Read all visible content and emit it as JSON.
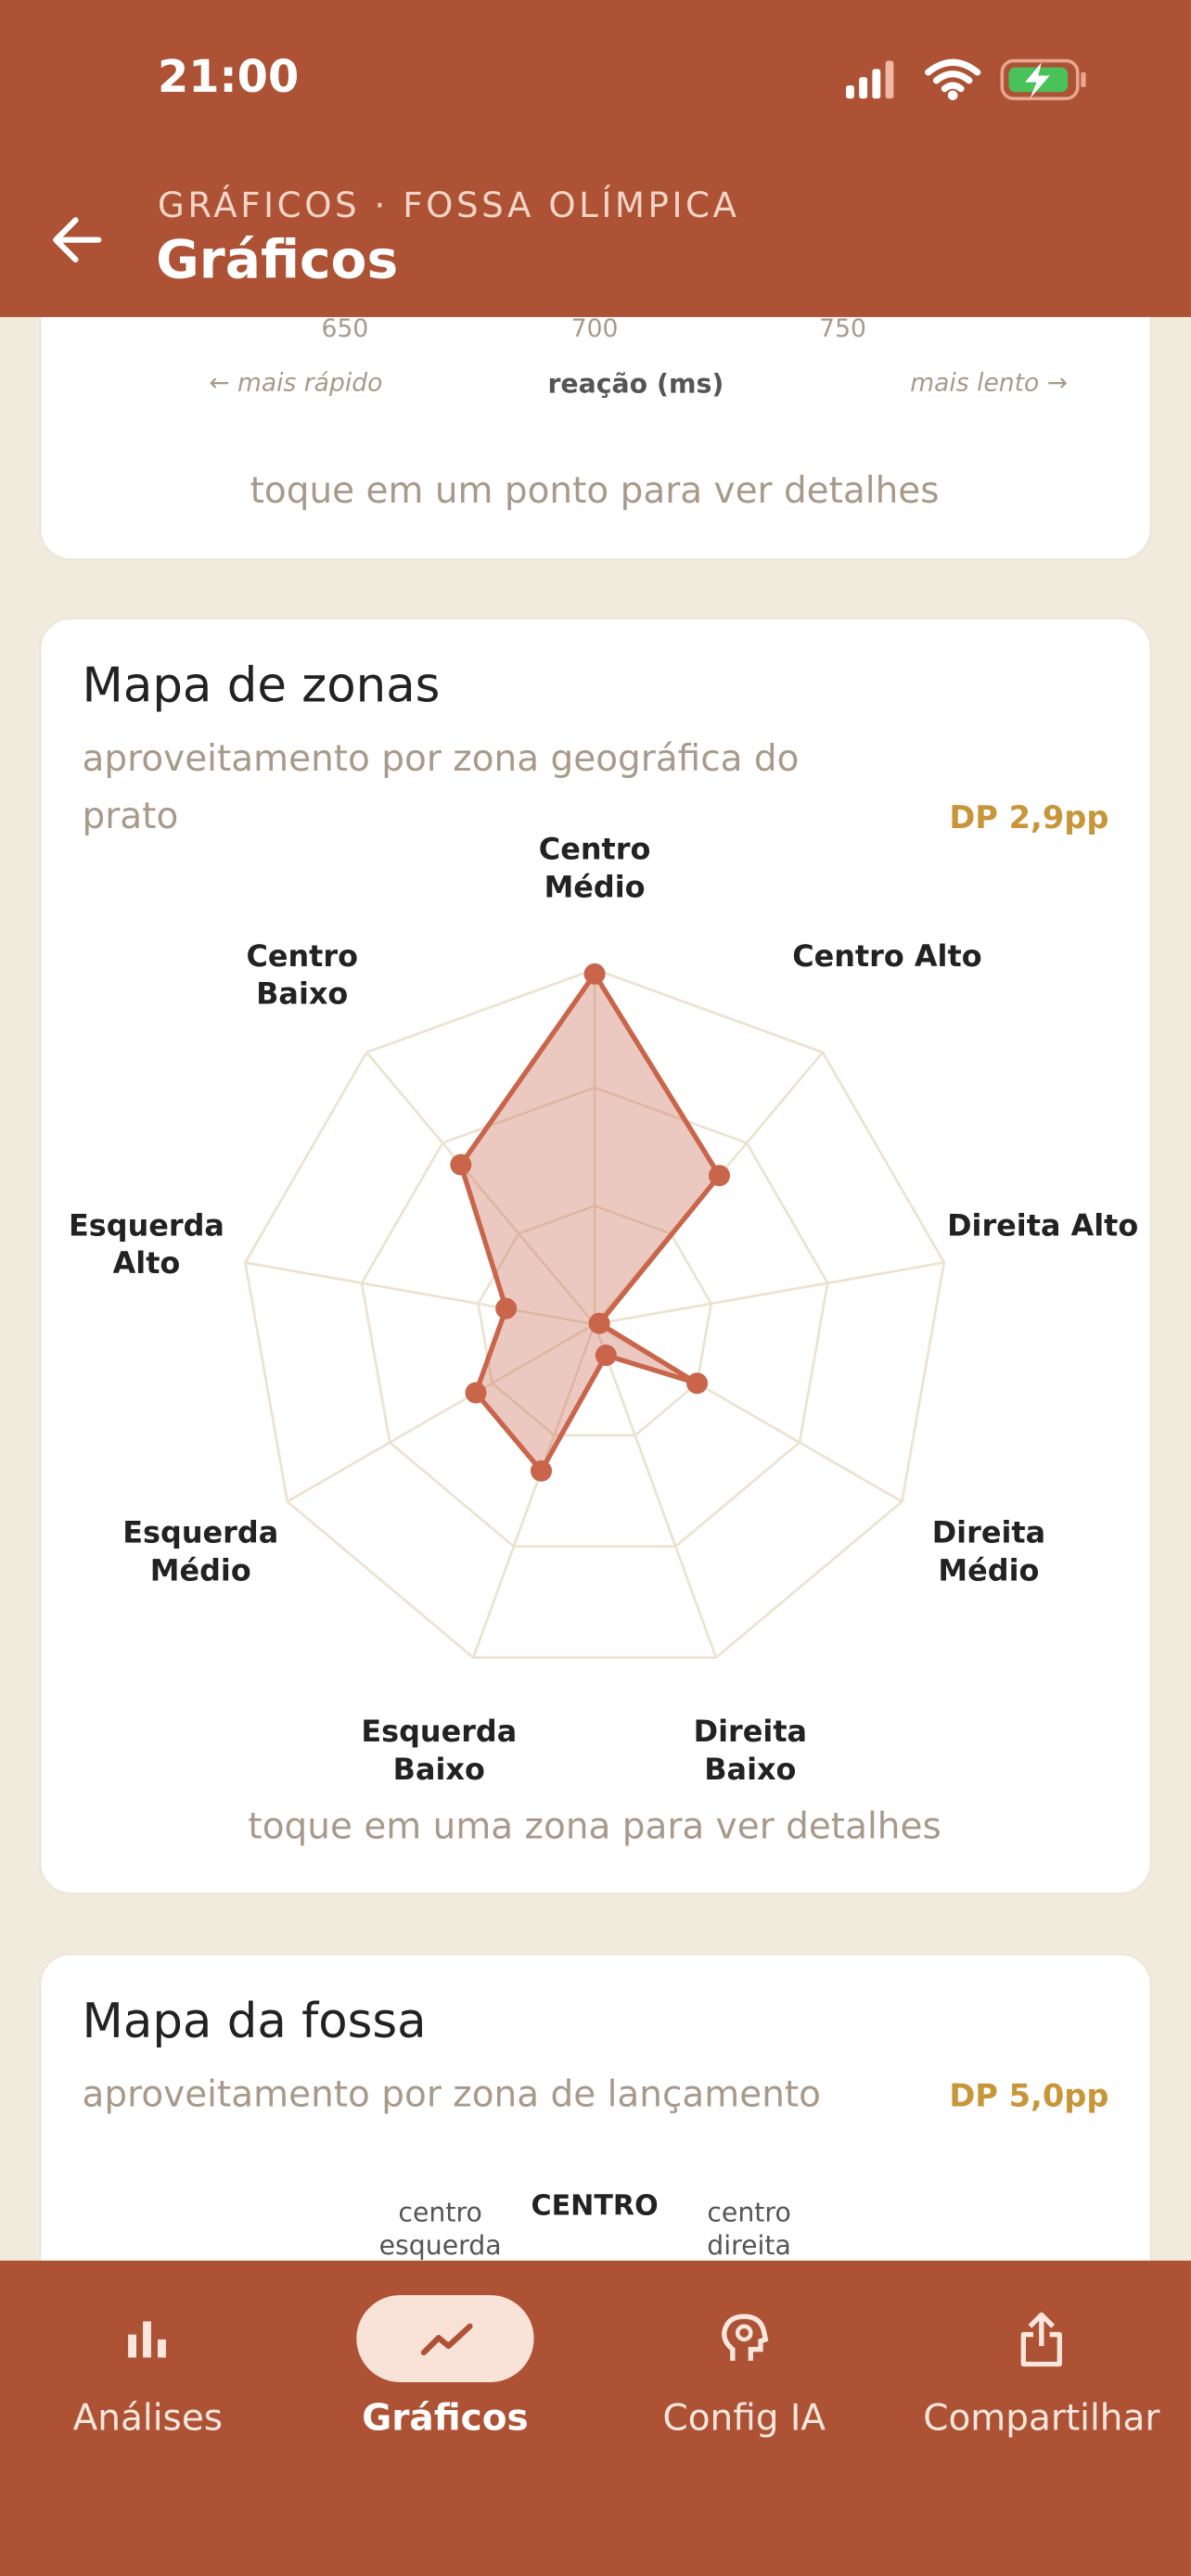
{
  "status_bar": {
    "time": "21:00"
  },
  "header": {
    "subtitle": "GRÁFICOS · FOSSA OLÍMPICA",
    "title": "Gráficos"
  },
  "reaction_card": {
    "ticks": [
      "650",
      "700",
      "750"
    ],
    "left_hint": "← mais rápido",
    "axis_label": "reação (ms)",
    "right_hint": "mais lento →",
    "hint": "toque em um ponto para ver detalhes"
  },
  "zone_card": {
    "title": "Mapa de zonas",
    "subtitle": "aproveitamento por zona geográfica do prato",
    "badge": "DP 2,9pp",
    "hint": "toque em uma zona para ver detalhes",
    "chart": {
      "type": "radar",
      "categories": [
        "Centro Médio",
        "Centro Alto",
        "Direita Alto",
        "Direita Médio",
        "Direita Baixo",
        "Esquerda Baixo",
        "Esquerda Médio",
        "Esquerda Alto",
        "Centro Baixo"
      ],
      "values": [
        74,
        41,
        1,
        25,
        7,
        33,
        29,
        19,
        44
      ],
      "color": "#c8654a",
      "rlim": [
        0,
        75
      ],
      "rticks": [
        25,
        50,
        75
      ]
    }
  },
  "pit_card": {
    "title": "Mapa da fossa",
    "subtitle": "aproveitamento por zona de lançamento",
    "badge": "DP 5,0pp",
    "labels": [
      "centro esquerda",
      "CENTRO",
      "centro direita"
    ]
  },
  "nav": {
    "items": [
      "Análises",
      "Gráficos",
      "Config IA",
      "Compartilhar"
    ],
    "active": 1
  }
}
